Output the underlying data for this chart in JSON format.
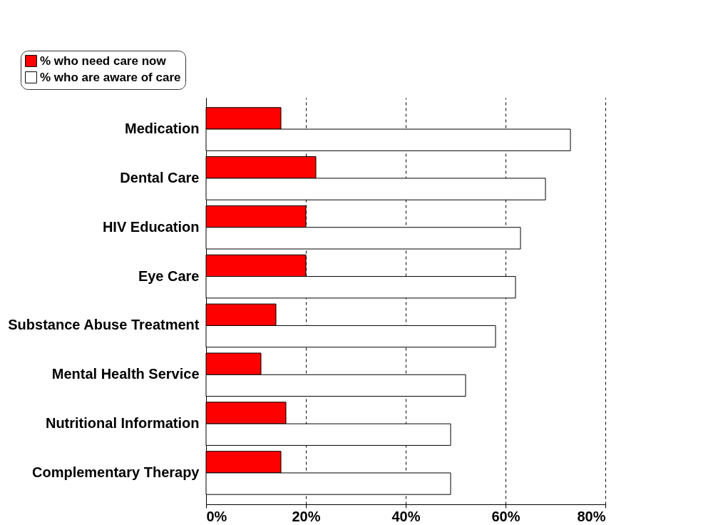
{
  "chart_data": {
    "type": "bar",
    "orientation": "horizontal",
    "categories": [
      "Medication",
      "Dental Care",
      "HIV Education",
      "Eye Care",
      "Substance Abuse Treatment",
      "Mental Health Service",
      "Nutritional Information",
      "Complementary Therapy"
    ],
    "series": [
      {
        "name": "% who need care now",
        "color": "#ff0000",
        "values": [
          15,
          22,
          20,
          20,
          14,
          11,
          16,
          15
        ]
      },
      {
        "name": "% who are aware of care",
        "color": "#ffffff",
        "values": [
          73,
          68,
          63,
          62,
          58,
          52,
          49,
          49
        ]
      }
    ],
    "xlim": [
      0,
      80
    ],
    "xticks": [
      {
        "value": 0,
        "label": "0%"
      },
      {
        "value": 20,
        "label": "20%"
      },
      {
        "value": 40,
        "label": "40%"
      },
      {
        "value": 60,
        "label": "60%"
      },
      {
        "value": 80,
        "label": "80%"
      }
    ],
    "grid": "x",
    "legend": "top left"
  }
}
